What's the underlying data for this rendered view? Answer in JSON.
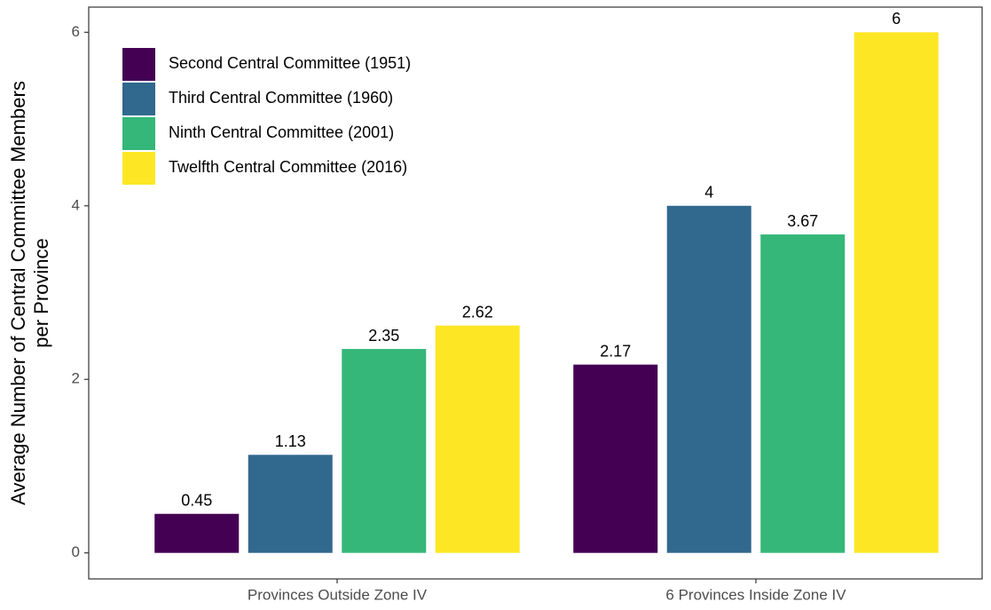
{
  "chart_data": {
    "type": "bar",
    "ylabel": [
      "Average Number of Central Committee Members",
      "per Province"
    ],
    "categories": [
      "Provinces Outside Zone IV",
      "6 Provinces Inside Zone IV"
    ],
    "series": [
      {
        "name": "Second Central Committee (1951)",
        "color": "#440154",
        "values": [
          0.45,
          2.17
        ]
      },
      {
        "name": "Third Central Committee (1960)",
        "color": "#31688e",
        "values": [
          1.13,
          4
        ]
      },
      {
        "name": "Ninth Central Committee (2001)",
        "color": "#35b779",
        "values": [
          2.35,
          3.67
        ]
      },
      {
        "name": "Twelfth Central Committee (2016)",
        "color": "#fde725",
        "values": [
          2.62,
          6
        ]
      }
    ],
    "ylim": [
      -0.3,
      6.29
    ],
    "yticks": [
      0,
      2,
      4,
      6
    ],
    "legend": "top-left"
  }
}
